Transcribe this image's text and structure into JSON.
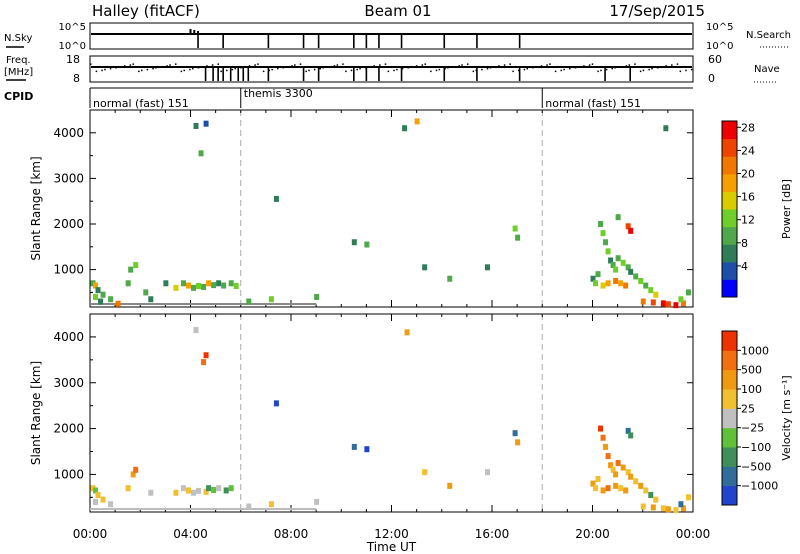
{
  "header": {
    "title_left": "Halley (fitACF)",
    "title_center": "Beam 01",
    "title_right": "17/Sep/2015"
  },
  "status_panels": {
    "nsky": {
      "label": "N.Sky",
      "left_ticks": [
        "10^5",
        "10^0"
      ],
      "right_ticks": [
        "10^5",
        "10^0"
      ],
      "right_label": "N.Search"
    },
    "freq": {
      "label_top": "Freq.",
      "label_unit": "[MHz]",
      "left_ticks": [
        "18",
        "8"
      ],
      "right_ticks": [
        "60",
        "0"
      ],
      "right_label": "Nave"
    },
    "cpid": {
      "label": "CPID",
      "segments": [
        {
          "name": "normal (fast) 151",
          "start_hour": 0
        },
        {
          "name": "themis 3300",
          "start_hour": 6
        },
        {
          "name": "normal (fast) 151",
          "start_hour": 18
        }
      ]
    },
    "nsearch_dropouts_hours": [
      4.3,
      5.3,
      7.1,
      8.5,
      9.1,
      10.5,
      11.0,
      11.5,
      12.4,
      14.1,
      15.4,
      17.1
    ],
    "freq_dropouts_hours": [
      4.6,
      4.9,
      5.1,
      5.3,
      5.6,
      5.9,
      6.1,
      6.3,
      7.1,
      8.5,
      9.1,
      10.5,
      11.0,
      11.5,
      12.4,
      14.1,
      15.4,
      17.1,
      20.5,
      21.5
    ]
  },
  "chart_data": [
    {
      "type": "heatmap",
      "name": "Power",
      "xlabel": "",
      "ylabel": "Slant Range [km]",
      "xlim": [
        0,
        24
      ],
      "ylim": [
        180,
        4500
      ],
      "yticks": [
        1000,
        2000,
        3000,
        4000
      ],
      "colorbar": {
        "label": "Power [dB]",
        "ticks": [
          "4",
          "8",
          "12",
          "16",
          "20",
          "24",
          "28"
        ],
        "colors": [
          "#0000ff",
          "#1e4fa8",
          "#2f7d58",
          "#4fa84a",
          "#6fce2a",
          "#d8cc00",
          "#f6a000",
          "#f07800",
          "#ee4400",
          "#ee0000"
        ]
      },
      "cpid_dividers_hours": [
        6,
        18
      ],
      "points": [
        {
          "t": 0.1,
          "r": 700,
          "c": 3
        },
        {
          "t": 0.2,
          "r": 650,
          "c": 6
        },
        {
          "t": 0.3,
          "r": 550,
          "c": 2
        },
        {
          "t": 0.2,
          "r": 400,
          "c": 4
        },
        {
          "t": 0.5,
          "r": 450,
          "c": 3
        },
        {
          "t": 0.4,
          "r": 300,
          "c": 2
        },
        {
          "t": 0.8,
          "r": 350,
          "c": 3
        },
        {
          "t": 1.1,
          "r": 250,
          "c": 7
        },
        {
          "t": 1.5,
          "r": 700,
          "c": 3
        },
        {
          "t": 1.6,
          "r": 1000,
          "c": 3
        },
        {
          "t": 1.8,
          "r": 1100,
          "c": 4
        },
        {
          "t": 2.2,
          "r": 500,
          "c": 3
        },
        {
          "t": 2.4,
          "r": 350,
          "c": 2
        },
        {
          "t": 3.0,
          "r": 700,
          "c": 2
        },
        {
          "t": 3.4,
          "r": 600,
          "c": 5
        },
        {
          "t": 3.7,
          "r": 700,
          "c": 3
        },
        {
          "t": 3.9,
          "r": 650,
          "c": 6
        },
        {
          "t": 4.1,
          "r": 600,
          "c": 3
        },
        {
          "t": 4.3,
          "r": 640,
          "c": 4
        },
        {
          "t": 4.5,
          "r": 620,
          "c": 3
        },
        {
          "t": 4.7,
          "r": 700,
          "c": 6
        },
        {
          "t": 4.9,
          "r": 660,
          "c": 3
        },
        {
          "t": 5.1,
          "r": 700,
          "c": 2
        },
        {
          "t": 5.3,
          "r": 650,
          "c": 3
        },
        {
          "t": 5.6,
          "r": 700,
          "c": 3
        },
        {
          "t": 5.8,
          "r": 640,
          "c": 4
        },
        {
          "t": 4.6,
          "r": 4200,
          "c": 1
        },
        {
          "t": 4.4,
          "r": 3550,
          "c": 3
        },
        {
          "t": 4.2,
          "r": 4150,
          "c": 2
        },
        {
          "t": 6.3,
          "r": 300,
          "c": 3
        },
        {
          "t": 7.2,
          "r": 350,
          "c": 4
        },
        {
          "t": 7.4,
          "r": 2550,
          "c": 2
        },
        {
          "t": 9.0,
          "r": 400,
          "c": 3
        },
        {
          "t": 10.5,
          "r": 1600,
          "c": 2
        },
        {
          "t": 11.0,
          "r": 1550,
          "c": 3
        },
        {
          "t": 12.5,
          "r": 4100,
          "c": 2
        },
        {
          "t": 13.0,
          "r": 4250,
          "c": 6
        },
        {
          "t": 13.3,
          "r": 1050,
          "c": 2
        },
        {
          "t": 14.3,
          "r": 800,
          "c": 3
        },
        {
          "t": 15.8,
          "r": 1050,
          "c": 2
        },
        {
          "t": 16.9,
          "r": 1900,
          "c": 4
        },
        {
          "t": 17.0,
          "r": 1700,
          "c": 3
        },
        {
          "t": 20.3,
          "r": 2000,
          "c": 3
        },
        {
          "t": 20.4,
          "r": 1800,
          "c": 4
        },
        {
          "t": 20.5,
          "r": 1600,
          "c": 3
        },
        {
          "t": 20.6,
          "r": 1400,
          "c": 4
        },
        {
          "t": 20.7,
          "r": 1200,
          "c": 2
        },
        {
          "t": 20.8,
          "r": 1100,
          "c": 3
        },
        {
          "t": 20.9,
          "r": 1000,
          "c": 4
        },
        {
          "t": 20.2,
          "r": 900,
          "c": 3
        },
        {
          "t": 20.0,
          "r": 800,
          "c": 2
        },
        {
          "t": 20.1,
          "r": 700,
          "c": 4
        },
        {
          "t": 20.4,
          "r": 650,
          "c": 5
        },
        {
          "t": 20.6,
          "r": 700,
          "c": 6
        },
        {
          "t": 20.9,
          "r": 750,
          "c": 7
        },
        {
          "t": 21.1,
          "r": 700,
          "c": 6
        },
        {
          "t": 21.3,
          "r": 650,
          "c": 7
        },
        {
          "t": 21.0,
          "r": 1250,
          "c": 3
        },
        {
          "t": 21.2,
          "r": 1150,
          "c": 4
        },
        {
          "t": 21.4,
          "r": 1050,
          "c": 3
        },
        {
          "t": 21.5,
          "r": 950,
          "c": 2
        },
        {
          "t": 21.7,
          "r": 850,
          "c": 3
        },
        {
          "t": 21.9,
          "r": 750,
          "c": 4
        },
        {
          "t": 22.1,
          "r": 650,
          "c": 3
        },
        {
          "t": 22.3,
          "r": 550,
          "c": 4
        },
        {
          "t": 22.5,
          "r": 450,
          "c": 5
        },
        {
          "t": 21.4,
          "r": 1950,
          "c": 8
        },
        {
          "t": 21.5,
          "r": 1850,
          "c": 9
        },
        {
          "t": 21.0,
          "r": 2150,
          "c": 3
        },
        {
          "t": 22.0,
          "r": 300,
          "c": 7
        },
        {
          "t": 22.4,
          "r": 280,
          "c": 8
        },
        {
          "t": 22.8,
          "r": 260,
          "c": 9
        },
        {
          "t": 23.0,
          "r": 240,
          "c": 8
        },
        {
          "t": 23.3,
          "r": 220,
          "c": 9
        },
        {
          "t": 23.6,
          "r": 260,
          "c": 7
        },
        {
          "t": 23.5,
          "r": 350,
          "c": 4
        },
        {
          "t": 23.8,
          "r": 500,
          "c": 3
        },
        {
          "t": 22.9,
          "r": 4100,
          "c": 2
        }
      ]
    },
    {
      "type": "heatmap",
      "name": "Velocity",
      "xlabel": "Time UT",
      "ylabel": "Slant Range [km]",
      "xlim": [
        0,
        24
      ],
      "ylim": [
        180,
        4500
      ],
      "xticks": [
        "00:00",
        "04:00",
        "08:00",
        "12:00",
        "16:00",
        "20:00",
        "00:00"
      ],
      "yticks": [
        1000,
        2000,
        3000,
        4000
      ],
      "colorbar": {
        "label": "Velocity [m s⁻¹]",
        "ticks": [
          "1000",
          "500",
          "100",
          "25",
          "−25",
          "−100",
          "−500",
          "−1000"
        ],
        "colors": [
          "#2244cc",
          "#2f6e9a",
          "#3f8f5a",
          "#5fc03a",
          "#c0c0c0",
          "#f0c030",
          "#f09a10",
          "#f07010",
          "#ee3300"
        ]
      },
      "cpid_dividers_hours": [
        6,
        18
      ],
      "points": [
        {
          "t": 0.1,
          "r": 700,
          "c": 5
        },
        {
          "t": 0.2,
          "r": 650,
          "c": 3
        },
        {
          "t": 0.3,
          "r": 550,
          "c": 5
        },
        {
          "t": 0.2,
          "r": 400,
          "c": 4
        },
        {
          "t": 0.5,
          "r": 450,
          "c": 5
        },
        {
          "t": 0.8,
          "r": 350,
          "c": 4
        },
        {
          "t": 1.5,
          "r": 700,
          "c": 5
        },
        {
          "t": 1.7,
          "r": 1000,
          "c": 6
        },
        {
          "t": 1.8,
          "r": 1100,
          "c": 7
        },
        {
          "t": 2.4,
          "r": 600,
          "c": 4
        },
        {
          "t": 3.4,
          "r": 600,
          "c": 5
        },
        {
          "t": 3.7,
          "r": 700,
          "c": 4
        },
        {
          "t": 3.9,
          "r": 650,
          "c": 5
        },
        {
          "t": 4.1,
          "r": 600,
          "c": 4
        },
        {
          "t": 4.3,
          "r": 640,
          "c": 4
        },
        {
          "t": 4.6,
          "r": 620,
          "c": 5
        },
        {
          "t": 4.7,
          "r": 700,
          "c": 2
        },
        {
          "t": 4.9,
          "r": 660,
          "c": 3
        },
        {
          "t": 5.1,
          "r": 700,
          "c": 4
        },
        {
          "t": 5.4,
          "r": 650,
          "c": 2
        },
        {
          "t": 5.6,
          "r": 700,
          "c": 3
        },
        {
          "t": 4.6,
          "r": 3600,
          "c": 8
        },
        {
          "t": 4.5,
          "r": 3450,
          "c": 7
        },
        {
          "t": 4.2,
          "r": 4150,
          "c": 4
        },
        {
          "t": 6.3,
          "r": 300,
          "c": 4
        },
        {
          "t": 7.2,
          "r": 350,
          "c": 5
        },
        {
          "t": 7.4,
          "r": 2550,
          "c": 0
        },
        {
          "t": 9.0,
          "r": 400,
          "c": 4
        },
        {
          "t": 10.5,
          "r": 1600,
          "c": 1
        },
        {
          "t": 11.0,
          "r": 1550,
          "c": 0
        },
        {
          "t": 12.6,
          "r": 4100,
          "c": 6
        },
        {
          "t": 13.3,
          "r": 1050,
          "c": 5
        },
        {
          "t": 14.3,
          "r": 750,
          "c": 6
        },
        {
          "t": 15.8,
          "r": 1050,
          "c": 4
        },
        {
          "t": 16.9,
          "r": 1900,
          "c": 1
        },
        {
          "t": 17.0,
          "r": 1700,
          "c": 6
        },
        {
          "t": 20.3,
          "r": 2000,
          "c": 8
        },
        {
          "t": 20.4,
          "r": 1800,
          "c": 7
        },
        {
          "t": 20.5,
          "r": 1600,
          "c": 6
        },
        {
          "t": 20.6,
          "r": 1400,
          "c": 7
        },
        {
          "t": 20.7,
          "r": 1200,
          "c": 6
        },
        {
          "t": 20.8,
          "r": 1100,
          "c": 5
        },
        {
          "t": 20.9,
          "r": 1000,
          "c": 6
        },
        {
          "t": 20.2,
          "r": 900,
          "c": 5
        },
        {
          "t": 20.0,
          "r": 800,
          "c": 6
        },
        {
          "t": 20.1,
          "r": 700,
          "c": 5
        },
        {
          "t": 20.4,
          "r": 650,
          "c": 6
        },
        {
          "t": 20.6,
          "r": 700,
          "c": 7
        },
        {
          "t": 20.9,
          "r": 750,
          "c": 6
        },
        {
          "t": 21.1,
          "r": 700,
          "c": 5
        },
        {
          "t": 21.3,
          "r": 650,
          "c": 6
        },
        {
          "t": 21.0,
          "r": 1250,
          "c": 7
        },
        {
          "t": 21.2,
          "r": 1150,
          "c": 6
        },
        {
          "t": 21.4,
          "r": 1050,
          "c": 5
        },
        {
          "t": 21.5,
          "r": 950,
          "c": 6
        },
        {
          "t": 21.7,
          "r": 850,
          "c": 5
        },
        {
          "t": 21.9,
          "r": 750,
          "c": 6
        },
        {
          "t": 22.1,
          "r": 650,
          "c": 5
        },
        {
          "t": 22.3,
          "r": 550,
          "c": 2
        },
        {
          "t": 22.5,
          "r": 450,
          "c": 5
        },
        {
          "t": 21.4,
          "r": 1950,
          "c": 1
        },
        {
          "t": 21.5,
          "r": 1850,
          "c": 2
        },
        {
          "t": 22.0,
          "r": 300,
          "c": 5
        },
        {
          "t": 22.4,
          "r": 280,
          "c": 6
        },
        {
          "t": 22.8,
          "r": 260,
          "c": 5
        },
        {
          "t": 23.0,
          "r": 240,
          "c": 6
        },
        {
          "t": 23.3,
          "r": 220,
          "c": 5
        },
        {
          "t": 23.6,
          "r": 260,
          "c": 6
        },
        {
          "t": 23.5,
          "r": 350,
          "c": 1
        },
        {
          "t": 23.8,
          "r": 500,
          "c": 5
        }
      ]
    }
  ]
}
